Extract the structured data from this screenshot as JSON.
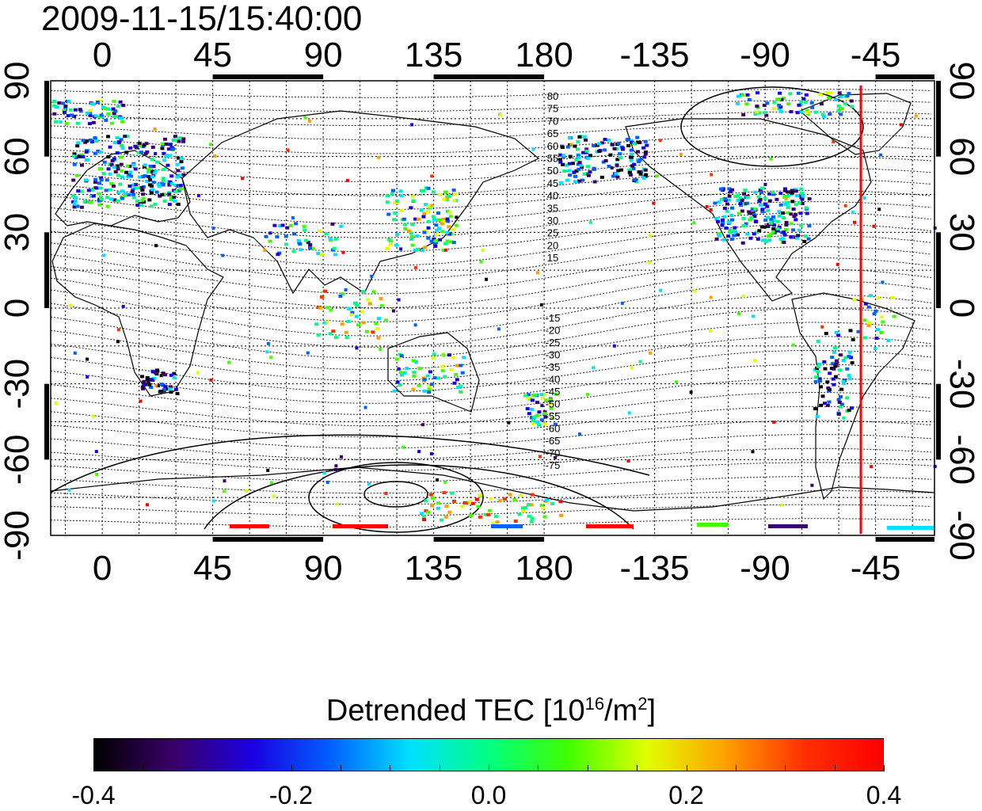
{
  "title": "2009-11-15/15:40:00",
  "map": {
    "lon_labels_top": [
      "0",
      "45",
      "90",
      "135",
      "180",
      "-135",
      "-90",
      "-45"
    ],
    "lon_labels_bottom": [
      "0",
      "45",
      "90",
      "135",
      "180",
      "-135",
      "-90",
      "-45"
    ],
    "lat_labels_left": [
      "90",
      "60",
      "30",
      "0",
      "-30",
      "-60",
      "-90"
    ],
    "lat_labels_right": [
      "90",
      "60",
      "30",
      "0",
      "-30",
      "-60",
      "-90"
    ],
    "contour_labels_north": [
      "80",
      "75",
      "70",
      "65",
      "60",
      "55",
      "50",
      "45",
      "40",
      "35",
      "30",
      "25",
      "20",
      "15"
    ],
    "contour_labels_south": [
      "-15",
      "-20",
      "-25",
      "-30",
      "-35",
      "-40",
      "-45",
      "-50",
      "-55",
      "-60",
      "-65",
      "-70",
      "-75"
    ],
    "terminator_line_color": "#ff0000",
    "terminator_longitude": -51
  },
  "colorbar": {
    "title_prefix": "Detrended TEC  [10",
    "title_exp1": "16",
    "title_mid": "/m",
    "title_exp2": "2",
    "title_suffix": "]",
    "min": -0.4,
    "max": 0.4,
    "tick_labels": [
      "-0.4",
      "-0.2",
      "0.0",
      "0.2",
      "0.4"
    ],
    "colors": [
      "#000000",
      "#3a0068",
      "#1a00e0",
      "#0060ff",
      "#00e0ff",
      "#00ff80",
      "#40ff00",
      "#e0ff00",
      "#ffa000",
      "#ff3000",
      "#ff0000"
    ]
  }
}
